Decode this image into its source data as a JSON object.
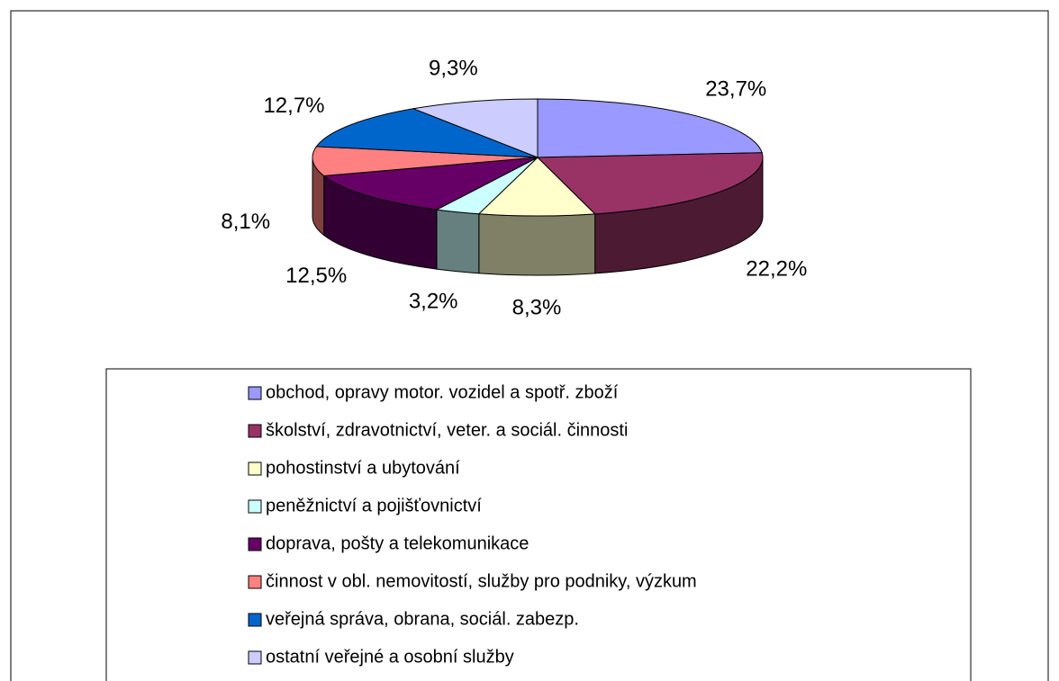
{
  "chart_data": {
    "type": "pie",
    "categories": [
      "obchod, opravy motor. vozidel a spotř. zboží",
      "školství, zdravotnictví, veter. a sociál. činnosti",
      "pohostinství a ubytování",
      "peněžnictví a pojišťovnictví",
      "doprava, pošty a telekomunikace",
      "činnost v obl. nemovitostí, služby pro podniky, výzkum",
      "veřejná správa, obrana, sociál. zabezp.",
      "ostatní veřejné a osobní služby"
    ],
    "values": [
      23.7,
      22.2,
      8.3,
      3.2,
      12.5,
      8.1,
      12.7,
      9.3
    ],
    "value_labels": [
      "23,7%",
      "22,2%",
      "8,3%",
      "3,2%",
      "12,5%",
      "8,1%",
      "12,7%",
      "9,3%"
    ],
    "colors": [
      "#9999ff",
      "#993366",
      "#ffffcc",
      "#ccffff",
      "#660066",
      "#ff8080",
      "#0066cc",
      "#ccccff"
    ],
    "legend": "bottom"
  }
}
